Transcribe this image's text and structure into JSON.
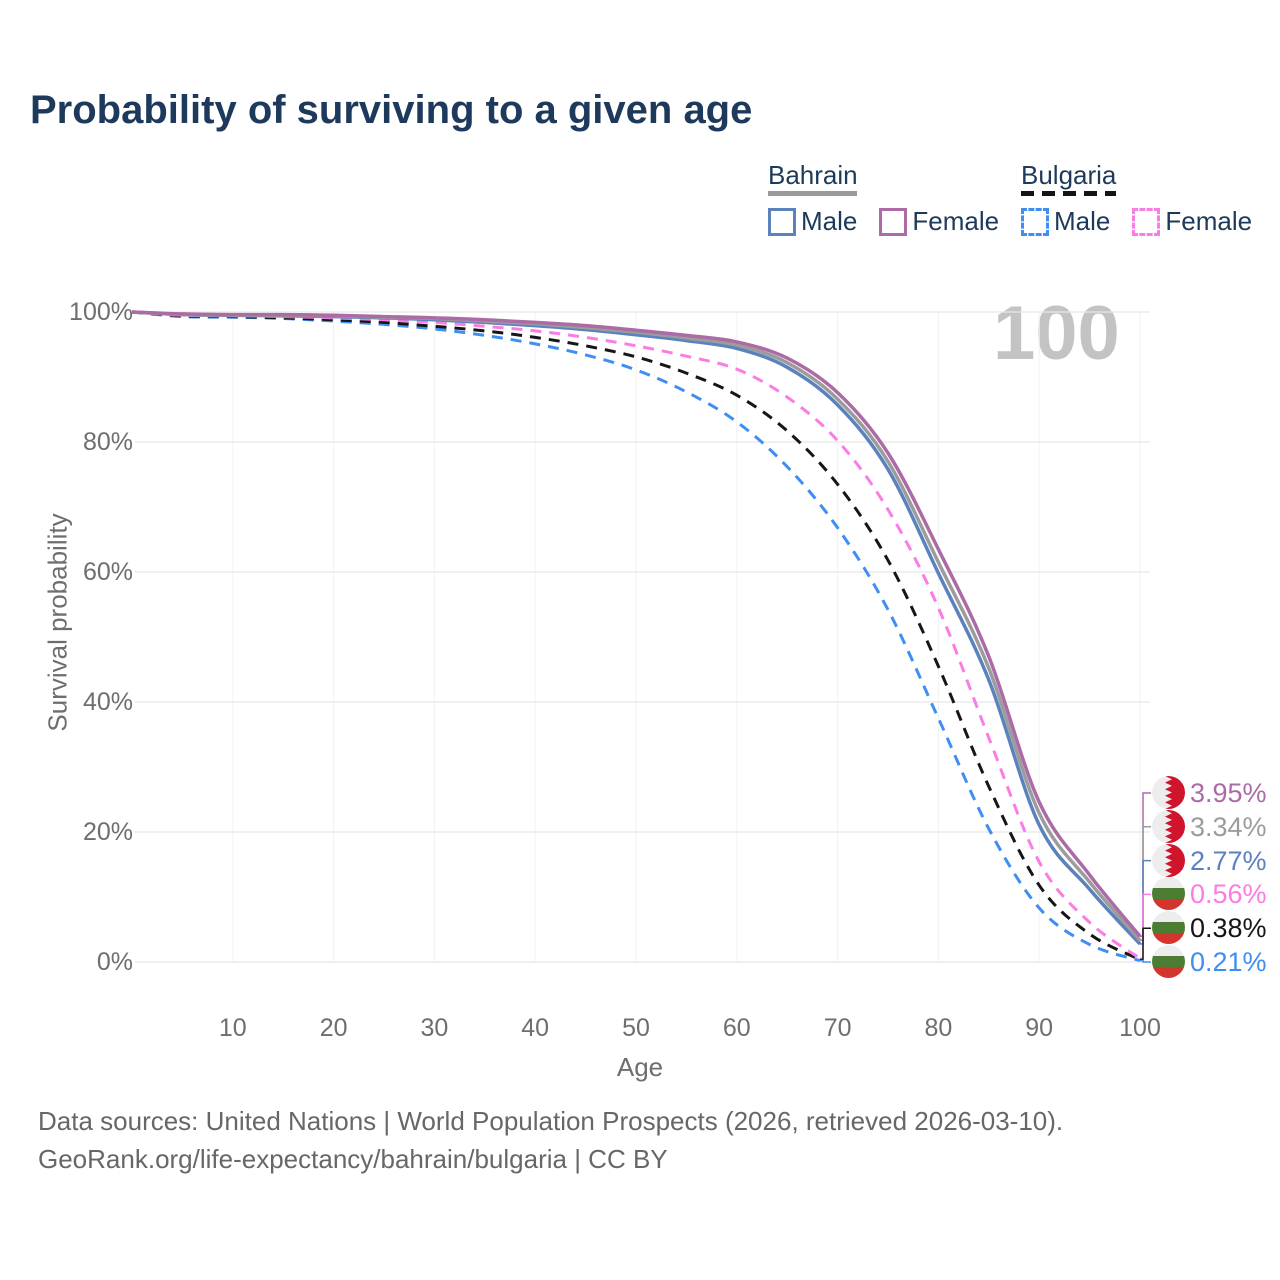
{
  "title": "Probability of surviving to a given age",
  "watermark": "100",
  "legend": {
    "groups": [
      {
        "country": "Bahrain",
        "line_style": "solid",
        "underline_color": "#9a9a9a",
        "items": [
          {
            "label": "Male",
            "color": "#5b82bd"
          },
          {
            "label": "Female",
            "color": "#ac6ba5"
          }
        ]
      },
      {
        "country": "Bulgaria",
        "line_style": "dashed",
        "underline_color": "#141414",
        "items": [
          {
            "label": "Male",
            "color": "#3f8ef2"
          },
          {
            "label": "Female",
            "color": "#fb7ce4"
          }
        ]
      }
    ]
  },
  "axes": {
    "x": {
      "title": "Age",
      "ticks": [
        10,
        20,
        30,
        40,
        50,
        60,
        70,
        80,
        90,
        100
      ],
      "range": [
        0,
        100
      ]
    },
    "y": {
      "title": "Survival probability",
      "ticks": [
        "0%",
        "20%",
        "40%",
        "60%",
        "80%",
        "100%"
      ],
      "tick_values": [
        0,
        20,
        40,
        60,
        80,
        100
      ],
      "range": [
        0,
        100
      ]
    }
  },
  "chart_data": {
    "type": "line",
    "title": "Probability of surviving to a given age",
    "xlabel": "Age",
    "ylabel": "Survival probability",
    "xlim": [
      0,
      100
    ],
    "ylim": [
      0,
      100
    ],
    "grid": true,
    "legend_position": "top-right",
    "x": [
      0,
      5,
      10,
      15,
      20,
      25,
      30,
      35,
      40,
      45,
      50,
      55,
      60,
      65,
      70,
      75,
      80,
      85,
      90,
      95,
      100
    ],
    "series": [
      {
        "name": "Bahrain Female",
        "country": "Bahrain",
        "sex": "Female",
        "color": "#ac6ba5",
        "dash": false,
        "flag": "bahrain",
        "end_label": "3.95%",
        "values": [
          100,
          99.7,
          99.6,
          99.6,
          99.5,
          99.3,
          99.1,
          98.8,
          98.4,
          97.9,
          97.2,
          96.4,
          95.4,
          92.9,
          87.6,
          78.3,
          63.5,
          47.0,
          24.6,
          13.4,
          3.95
        ]
      },
      {
        "name": "Bahrain Both sexes",
        "country": "Bahrain",
        "sex": "Both",
        "color": "#9c9c9c",
        "dash": false,
        "flag": "bahrain",
        "end_label": "3.34%",
        "values": [
          100,
          99.6,
          99.5,
          99.5,
          99.4,
          99.2,
          99.0,
          98.6,
          98.2,
          97.6,
          96.9,
          96.0,
          94.9,
          92.2,
          86.6,
          77.0,
          61.5,
          45.2,
          22.9,
          12.3,
          3.34
        ]
      },
      {
        "name": "Bahrain Male",
        "country": "Bahrain",
        "sex": "Male",
        "color": "#5b82bd",
        "dash": false,
        "flag": "bahrain",
        "end_label": "2.77%",
        "values": [
          100,
          99.6,
          99.5,
          99.4,
          99.3,
          99.1,
          98.8,
          98.4,
          97.9,
          97.3,
          96.5,
          95.6,
          94.4,
          91.5,
          85.7,
          75.8,
          59.8,
          43.4,
          21.1,
          11.2,
          2.77
        ]
      },
      {
        "name": "Bulgaria Female",
        "country": "Bulgaria",
        "sex": "Female",
        "color": "#fb7ce4",
        "dash": true,
        "flag": "bulgaria",
        "end_label": "0.56%",
        "values": [
          100,
          99.5,
          99.4,
          99.3,
          99.1,
          98.8,
          98.4,
          97.8,
          97.1,
          96.1,
          94.8,
          93.2,
          91.2,
          86.9,
          80.2,
          69.6,
          54.5,
          34.5,
          15.4,
          6.1,
          0.56
        ]
      },
      {
        "name": "Bulgaria Both sexes",
        "country": "Bulgaria",
        "sex": "Both",
        "color": "#161616",
        "dash": true,
        "flag": "bulgaria",
        "end_label": "0.38%",
        "values": [
          100,
          99.4,
          99.3,
          99.1,
          98.8,
          98.4,
          97.8,
          97.1,
          96.1,
          94.8,
          93.1,
          90.6,
          87.2,
          81.7,
          73.5,
          61.8,
          45.5,
          27.0,
          11.8,
          4.3,
          0.38
        ]
      },
      {
        "name": "Bulgaria Male",
        "country": "Bulgaria",
        "sex": "Male",
        "color": "#3f8ef2",
        "dash": true,
        "flag": "bulgaria",
        "end_label": "0.21%",
        "values": [
          100,
          99.3,
          99.2,
          99.0,
          98.6,
          98.1,
          97.4,
          96.4,
          95.1,
          93.4,
          91.1,
          87.7,
          83.1,
          76.2,
          66.8,
          54.2,
          37.5,
          20.5,
          8.3,
          2.7,
          0.21
        ]
      }
    ]
  },
  "footer": {
    "line1": "Data sources: United Nations | World Population Prospects (2026, retrieved 2026-03-10).",
    "line2": "GeoRank.org/life-expectancy/bahrain/bulgaria | CC BY"
  }
}
